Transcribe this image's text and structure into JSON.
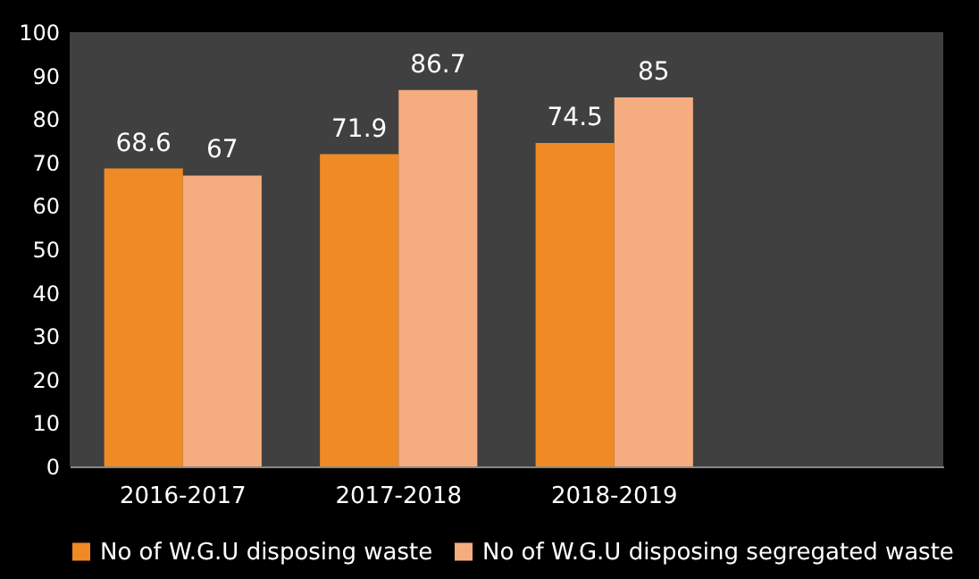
{
  "chart_data": {
    "type": "bar",
    "categories": [
      "2016-2017",
      "2017-2018",
      "2018-2019",
      null
    ],
    "series": [
      {
        "name": "No of W.G.U disposing waste",
        "color": "#f08a24",
        "values": [
          68.6,
          71.9,
          74.5,
          null
        ]
      },
      {
        "name": "No of W.G.U disposing segregated waste",
        "color": "#f5ac7e",
        "values": [
          67,
          86.7,
          85,
          null
        ]
      }
    ],
    "ylim": [
      0,
      100
    ],
    "yticks": [
      0,
      10,
      20,
      30,
      40,
      50,
      60,
      70,
      80,
      90,
      100
    ],
    "grid": false,
    "legend": "bottom",
    "data_labels": true
  }
}
